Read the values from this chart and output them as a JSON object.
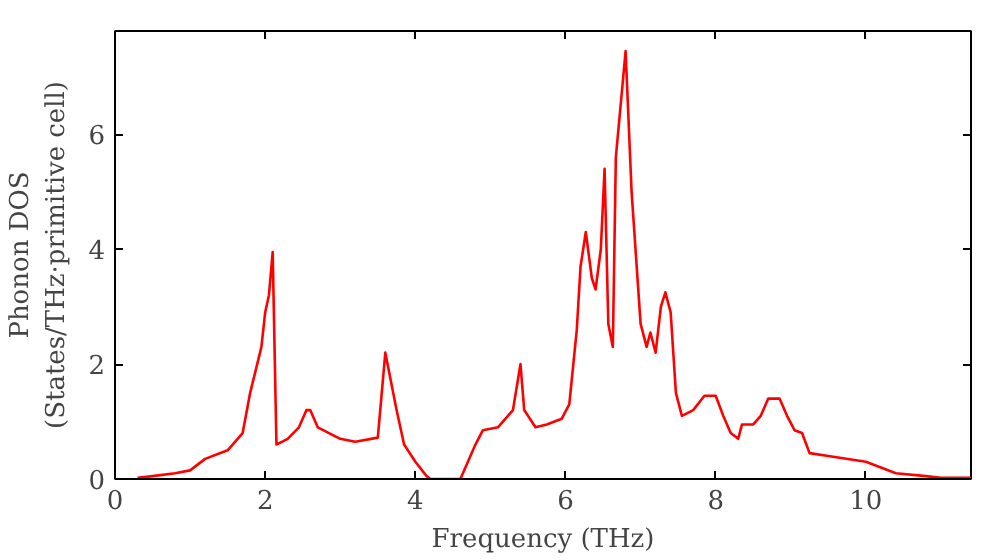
{
  "chart_data": {
    "type": "line",
    "xlabel": "Frequency (THz)",
    "ylabel": "Phonon DOS\n(States/THz·primitive cell)",
    "xlim": [
      0,
      11.4
    ],
    "ylim": [
      0,
      7.8
    ],
    "xticks": [
      0,
      2,
      4,
      6,
      8,
      10
    ],
    "yticks": [
      0,
      2,
      4,
      6
    ],
    "grid": false,
    "marker": "none",
    "line_style": "solid",
    "series": [
      {
        "color": "#ff0000",
        "x": [
          0.3,
          0.5,
          0.8,
          1.0,
          1.2,
          1.5,
          1.7,
          1.8,
          1.95,
          2.0,
          2.05,
          2.1,
          2.15,
          2.3,
          2.45,
          2.55,
          2.6,
          2.7,
          3.0,
          3.2,
          3.5,
          3.6,
          3.75,
          3.85,
          4.0,
          4.15,
          4.2,
          4.6,
          4.8,
          4.9,
          5.1,
          5.3,
          5.4,
          5.45,
          5.6,
          5.75,
          5.95,
          6.05,
          6.15,
          6.2,
          6.27,
          6.35,
          6.4,
          6.47,
          6.52,
          6.57,
          6.63,
          6.67,
          6.8,
          6.88,
          7.0,
          7.08,
          7.13,
          7.2,
          7.27,
          7.33,
          7.4,
          7.47,
          7.55,
          7.7,
          7.85,
          8.0,
          8.1,
          8.2,
          8.3,
          8.35,
          8.5,
          8.6,
          8.7,
          8.85,
          8.95,
          9.05,
          9.15,
          9.25,
          9.5,
          10.0,
          10.2,
          10.4,
          10.8,
          11.0,
          11.4
        ],
        "values": [
          0.02,
          0.05,
          0.1,
          0.15,
          0.35,
          0.5,
          0.8,
          1.5,
          2.3,
          2.9,
          3.2,
          3.95,
          0.6,
          0.7,
          0.9,
          1.2,
          1.2,
          0.9,
          0.7,
          0.65,
          0.72,
          2.2,
          1.2,
          0.6,
          0.3,
          0.05,
          0,
          0,
          0.6,
          0.85,
          0.9,
          1.2,
          2.0,
          1.2,
          0.9,
          0.95,
          1.05,
          1.3,
          2.6,
          3.7,
          4.3,
          3.5,
          3.3,
          4.0,
          5.4,
          2.7,
          2.3,
          5.6,
          7.45,
          5.0,
          2.7,
          2.3,
          2.55,
          2.2,
          3.0,
          3.25,
          2.9,
          1.5,
          1.1,
          1.2,
          1.45,
          1.45,
          1.1,
          0.8,
          0.7,
          0.95,
          0.95,
          1.1,
          1.4,
          1.4,
          1.1,
          0.85,
          0.8,
          0.45,
          0.4,
          0.3,
          0.2,
          0.1,
          0.05,
          0.02,
          0.02
        ]
      }
    ]
  }
}
